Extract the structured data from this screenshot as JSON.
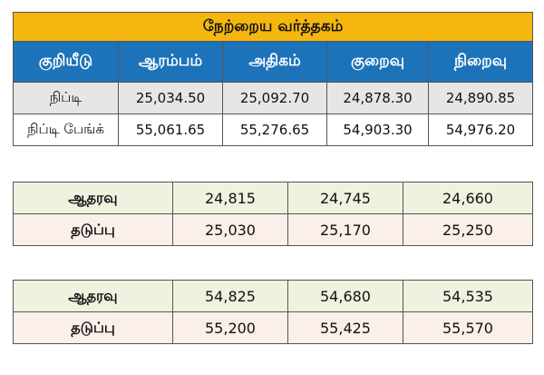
{
  "header": {
    "title": "நேற்றைய வர்த்தகம்"
  },
  "table": {
    "columns": [
      "குறியீடு",
      "ஆரம்பம்",
      "அதிகம்",
      "குறைவு",
      "நிறைவு"
    ],
    "rows": [
      [
        "நிப்டி",
        "25,034.50",
        "25,092.70",
        "24,878.30",
        "24,890.85"
      ],
      [
        "நிப்டி பேங்க்",
        "55,061.65",
        "55,276.65",
        "54,903.30",
        "54,976.20"
      ]
    ]
  },
  "levels_1": {
    "rows": [
      [
        "ஆதரவு",
        "24,815",
        "24,745",
        "24,660"
      ],
      [
        "தடுப்பு",
        "25,030",
        "25,170",
        "25,250"
      ]
    ]
  },
  "levels_2": {
    "rows": [
      [
        "ஆதரவு",
        "54,825",
        "54,680",
        "54,535"
      ],
      [
        "தடுப்பு",
        "55,200",
        "55,425",
        "55,570"
      ]
    ]
  }
}
